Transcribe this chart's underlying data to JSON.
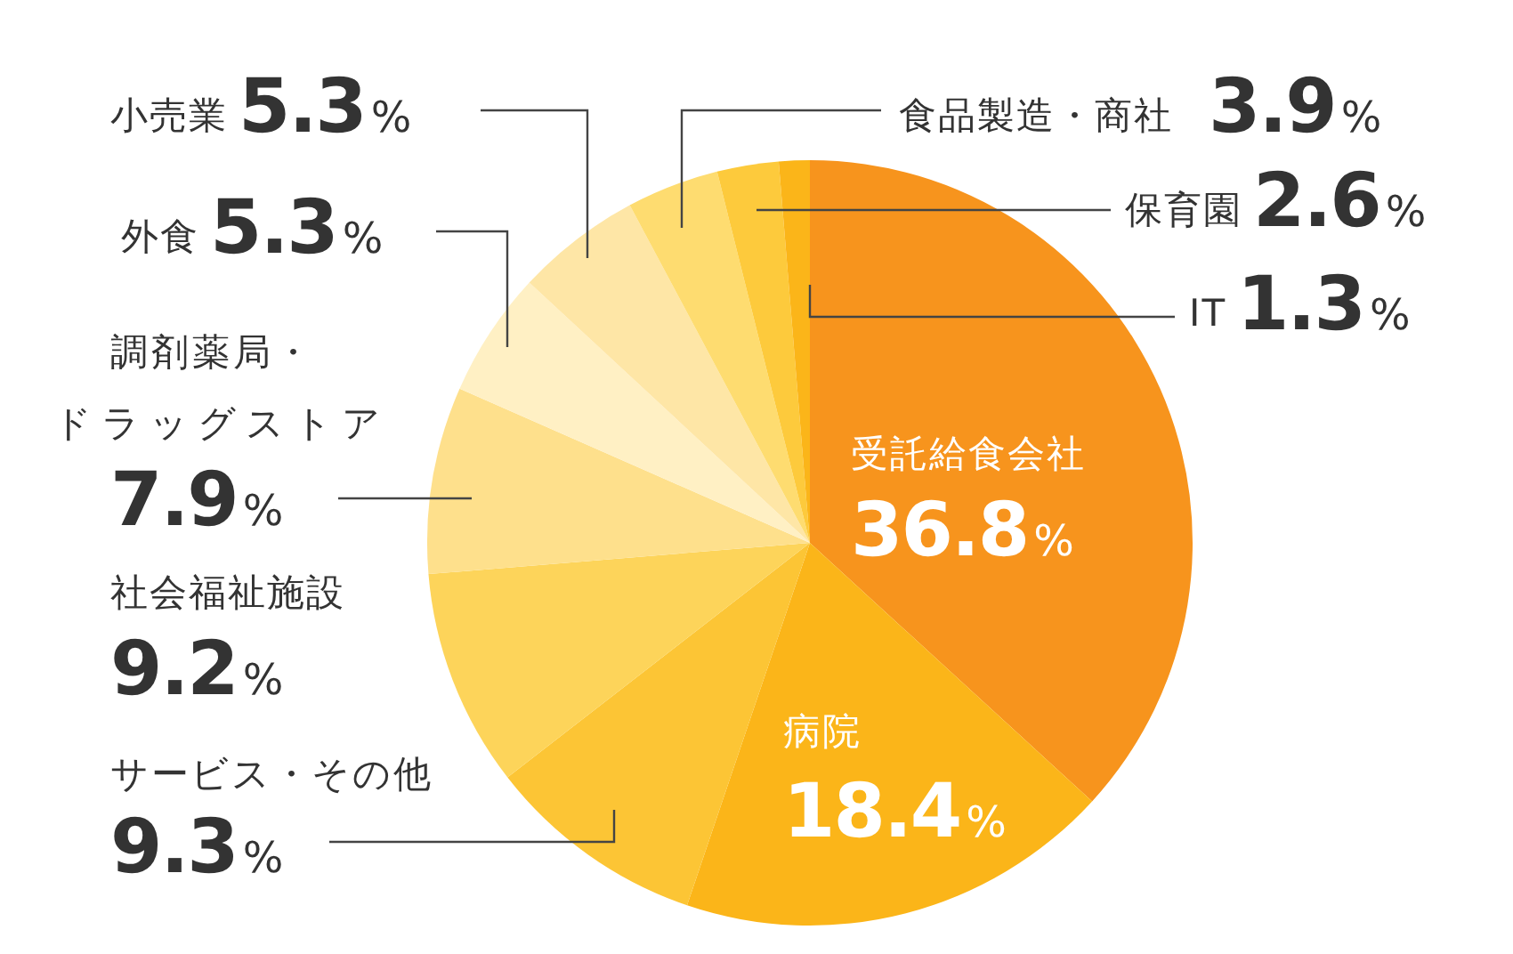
{
  "chart_data": {
    "type": "pie",
    "categories": [
      "受託給食会社",
      "病院",
      "サービス・その他",
      "社会福祉施設",
      "調剤薬局・ドラッグストア",
      "外食",
      "小売業",
      "食品製造・商社",
      "保育園",
      "IT"
    ],
    "values": [
      36.8,
      18.4,
      9.3,
      9.2,
      7.9,
      5.3,
      5.3,
      3.9,
      2.6,
      1.3
    ],
    "value_labels": [
      "36.8%",
      "18.4%",
      "9.3%",
      "9.2%",
      "7.9%",
      "5.3%",
      "5.3%",
      "3.9%",
      "2.6%",
      "1.3%"
    ],
    "colors": [
      "#f7941d",
      "#fbb519",
      "#fcc535",
      "#fdd45a",
      "#fee08c",
      "#fff0c4",
      "#fee6a6",
      "#fedc70",
      "#fdca3c",
      "#fbb519"
    ]
  }
}
